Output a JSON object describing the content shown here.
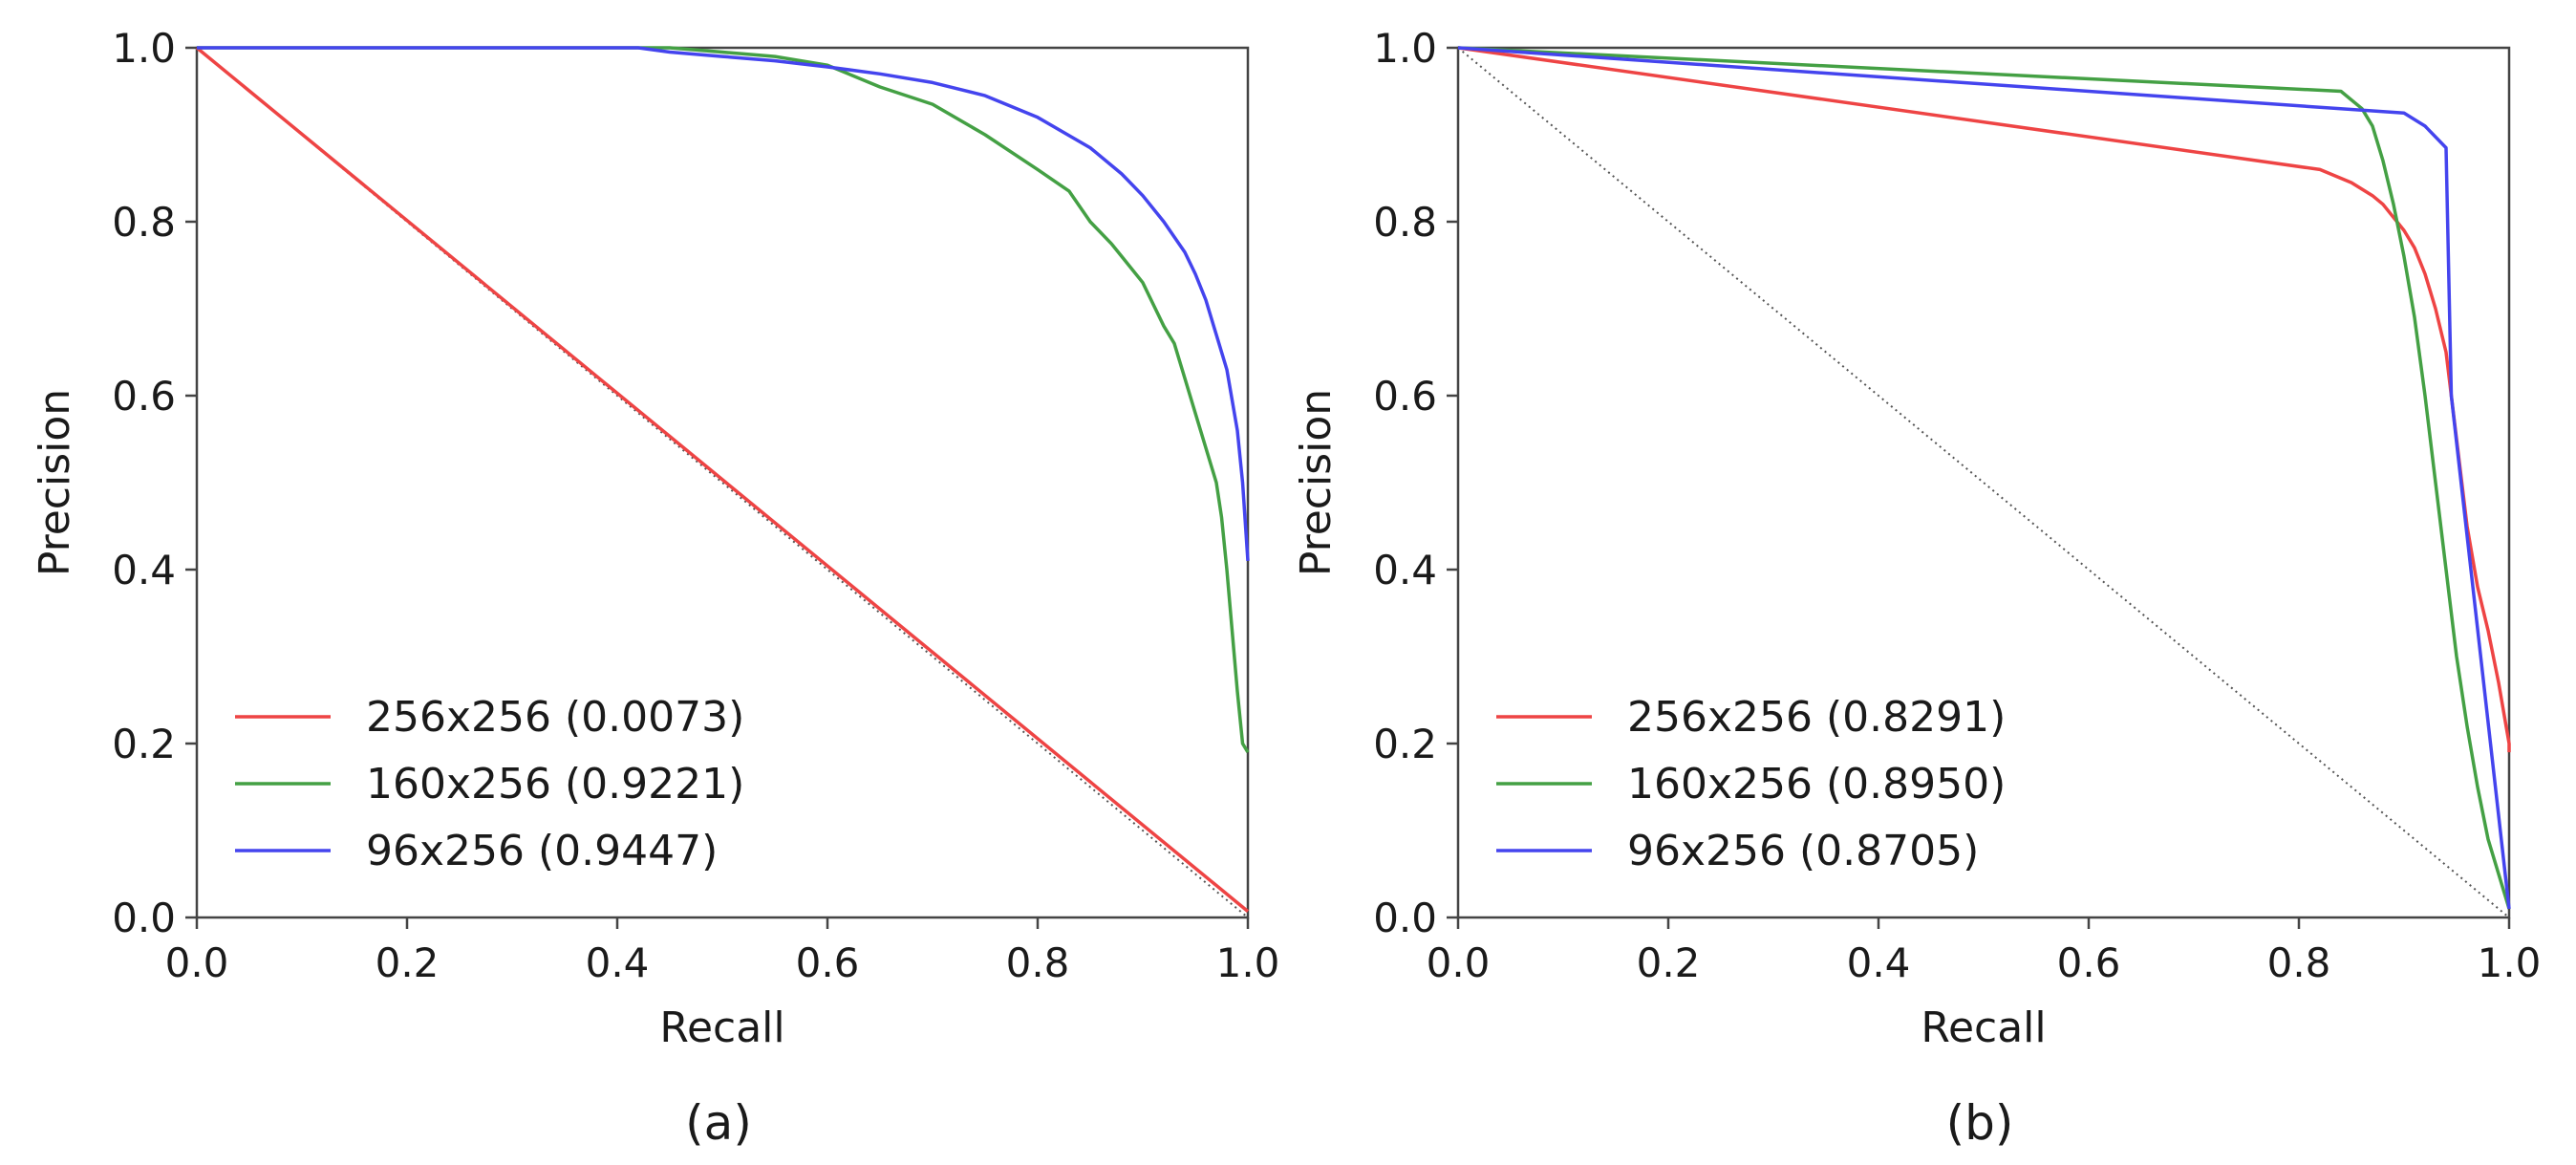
{
  "chart_data": [
    {
      "type": "line",
      "panel": "(a)",
      "xlabel": "Recall",
      "ylabel": "Precision",
      "xlim": [
        0,
        1
      ],
      "ylim": [
        0,
        1
      ],
      "xticks": [
        "0.0",
        "0.2",
        "0.4",
        "0.6",
        "0.8",
        "1.0"
      ],
      "yticks": [
        "0.0",
        "0.2",
        "0.4",
        "0.6",
        "0.8",
        "1.0"
      ],
      "legend_position": "lower-left",
      "baseline": {
        "style": "dotted",
        "color": "#555555",
        "x": [
          0,
          1
        ],
        "y": [
          1,
          0
        ]
      },
      "series": [
        {
          "name": "256x256 (0.0073)",
          "color": "#ee4444",
          "x": [
            0,
            1.0
          ],
          "y": [
            1.0,
            0.007
          ]
        },
        {
          "name": "160x256 (0.9221)",
          "color": "#44a044",
          "x": [
            0,
            0.3,
            0.45,
            0.5,
            0.55,
            0.6,
            0.62,
            0.65,
            0.7,
            0.75,
            0.8,
            0.83,
            0.85,
            0.87,
            0.88,
            0.9,
            0.91,
            0.92,
            0.93,
            0.94,
            0.95,
            0.96,
            0.97,
            0.975,
            0.98,
            0.985,
            0.99,
            0.995,
            1.0
          ],
          "y": [
            1.0,
            1.0,
            1.0,
            0.995,
            0.99,
            0.98,
            0.97,
            0.955,
            0.935,
            0.9,
            0.86,
            0.835,
            0.8,
            0.775,
            0.76,
            0.73,
            0.705,
            0.68,
            0.66,
            0.62,
            0.58,
            0.54,
            0.5,
            0.46,
            0.4,
            0.33,
            0.26,
            0.2,
            0.19
          ]
        },
        {
          "name": "96x256 (0.9447)",
          "color": "#4444ee",
          "x": [
            0,
            0.3,
            0.42,
            0.45,
            0.5,
            0.55,
            0.6,
            0.65,
            0.7,
            0.75,
            0.8,
            0.85,
            0.88,
            0.9,
            0.92,
            0.94,
            0.95,
            0.96,
            0.97,
            0.98,
            0.99,
            0.995,
            1.0
          ],
          "y": [
            1.0,
            1.0,
            1.0,
            0.995,
            0.99,
            0.985,
            0.978,
            0.97,
            0.96,
            0.945,
            0.92,
            0.885,
            0.855,
            0.83,
            0.8,
            0.765,
            0.74,
            0.71,
            0.67,
            0.63,
            0.56,
            0.5,
            0.41
          ]
        }
      ]
    },
    {
      "type": "line",
      "panel": "(b)",
      "xlabel": "Recall",
      "ylabel": "Precision",
      "xlim": [
        0,
        1
      ],
      "ylim": [
        0,
        1
      ],
      "xticks": [
        "0.0",
        "0.2",
        "0.4",
        "0.6",
        "0.8",
        "1.0"
      ],
      "yticks": [
        "0.0",
        "0.2",
        "0.4",
        "0.6",
        "0.8",
        "1.0"
      ],
      "legend_position": "lower-left",
      "baseline": {
        "style": "dotted",
        "color": "#555555",
        "x": [
          0,
          1
        ],
        "y": [
          1,
          0
        ]
      },
      "series": [
        {
          "name": "256x256 (0.8291)",
          "color": "#ee4444",
          "x": [
            0,
            0.82,
            0.85,
            0.87,
            0.88,
            0.9,
            0.91,
            0.92,
            0.93,
            0.94,
            0.95,
            0.96,
            0.97,
            0.98,
            0.99,
            1.0,
            1.0
          ],
          "y": [
            1.0,
            0.86,
            0.845,
            0.83,
            0.82,
            0.79,
            0.77,
            0.74,
            0.7,
            0.65,
            0.55,
            0.45,
            0.38,
            0.33,
            0.27,
            0.2,
            0.19
          ]
        },
        {
          "name": "160x256 (0.8950)",
          "color": "#44a044",
          "x": [
            0,
            0.84,
            0.86,
            0.87,
            0.88,
            0.89,
            0.9,
            0.91,
            0.92,
            0.93,
            0.94,
            0.95,
            0.96,
            0.97,
            0.98,
            0.99,
            1.0
          ],
          "y": [
            1.0,
            0.95,
            0.93,
            0.91,
            0.87,
            0.82,
            0.76,
            0.69,
            0.6,
            0.5,
            0.4,
            0.3,
            0.22,
            0.15,
            0.09,
            0.05,
            0.01
          ]
        },
        {
          "name": "96x256 (0.8705)",
          "color": "#4444ee",
          "x": [
            0,
            0.9,
            0.92,
            0.94,
            0.945,
            1.0
          ],
          "y": [
            1.0,
            0.925,
            0.91,
            0.885,
            0.6,
            0.01
          ]
        }
      ]
    }
  ]
}
